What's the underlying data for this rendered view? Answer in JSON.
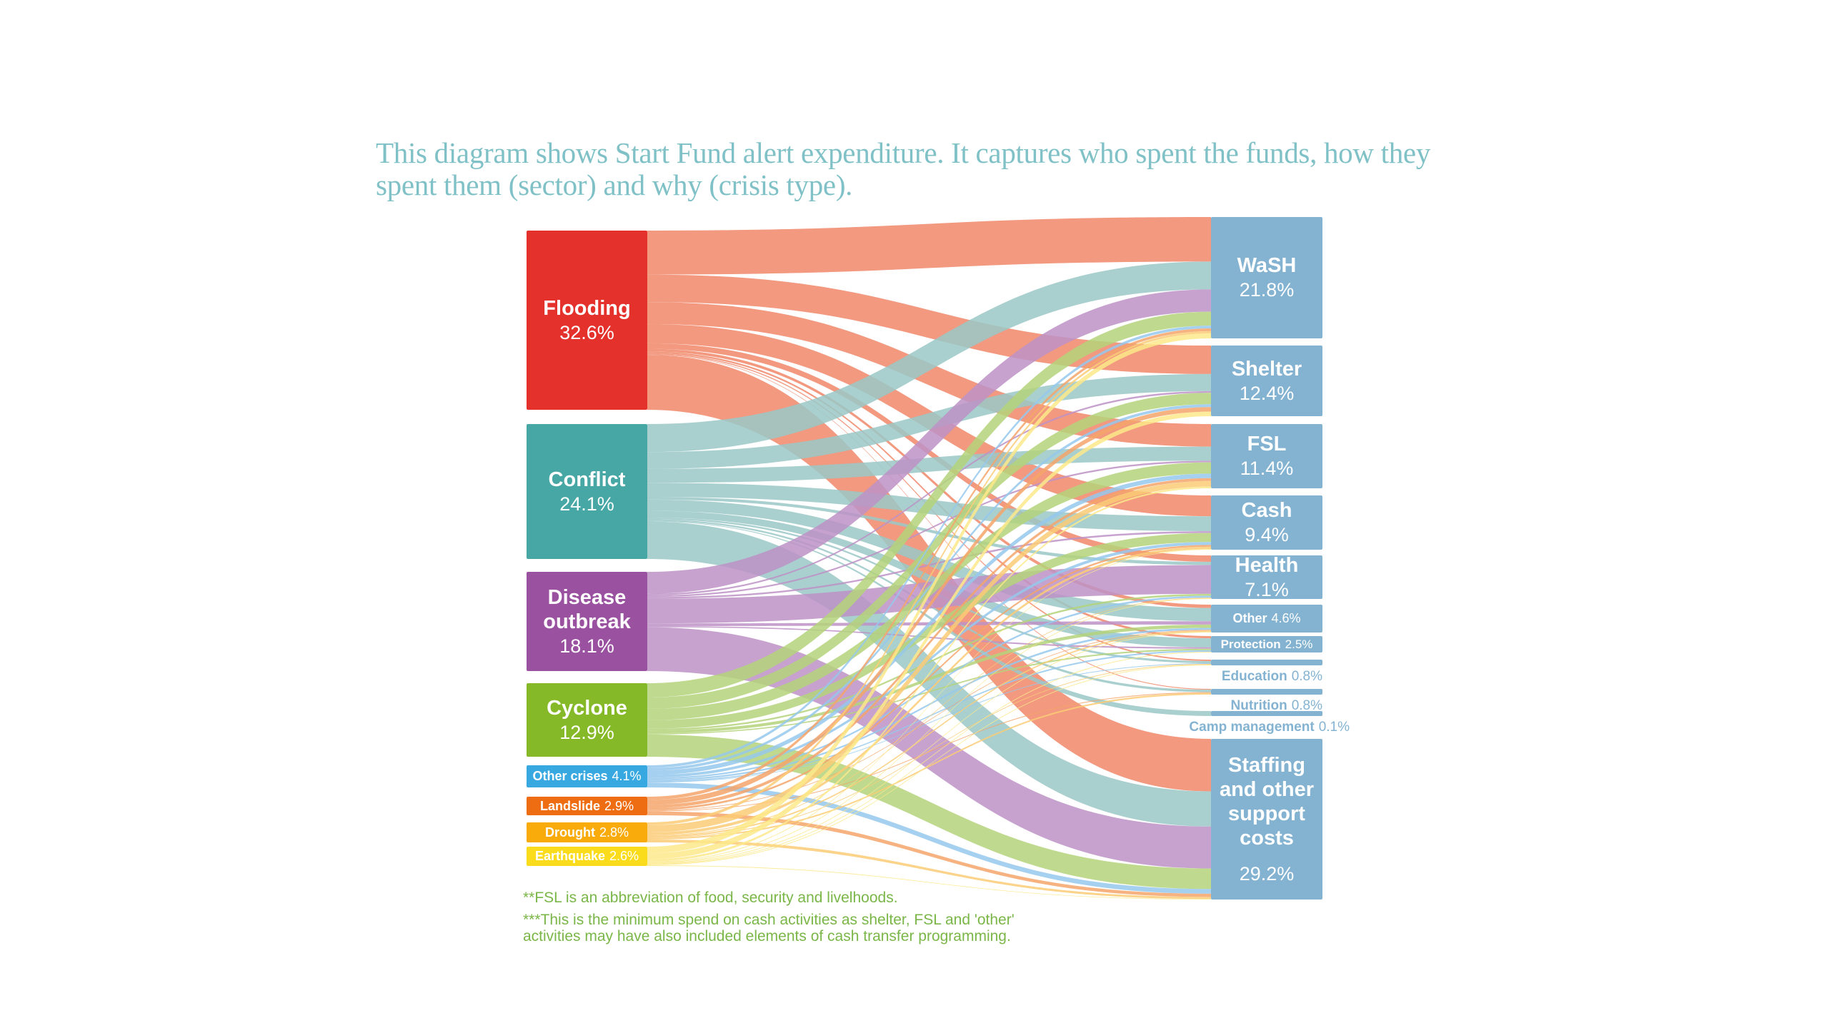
{
  "title": "This diagram shows Start Fund alert expenditure. It captures who spent the funds, how they spent them (sector) and why (crisis type).",
  "chart_data": {
    "type": "sankey",
    "sources": [
      {
        "name": "Flooding",
        "pct": "32.6%",
        "value": 32.6,
        "color": "#e4312b",
        "link_color": "#f0876a"
      },
      {
        "name": "Conflict",
        "pct": "24.1%",
        "value": 24.1,
        "color": "#46a7a5",
        "link_color": "#9ac8c7"
      },
      {
        "name": "Disease outbreak",
        "pct": "18.1%",
        "value": 18.1,
        "color": "#9a52a0",
        "link_color": "#bd92c6"
      },
      {
        "name": "Cyclone",
        "pct": "12.9%",
        "value": 12.9,
        "color": "#86b927",
        "link_color": "#b4d47a"
      },
      {
        "name": "Other crises",
        "pct": "4.1%",
        "value": 4.1,
        "color": "#38a8e0",
        "link_color": "#95c8ec"
      },
      {
        "name": "Landslide",
        "pct": "2.9%",
        "value": 2.9,
        "color": "#ee6c12",
        "link_color": "#f4a46a"
      },
      {
        "name": "Drought",
        "pct": "2.8%",
        "value": 2.8,
        "color": "#f9ab0b",
        "link_color": "#fccb75"
      },
      {
        "name": "Earthquake",
        "pct": "2.6%",
        "value": 2.6,
        "color": "#fbdc1d",
        "link_color": "#fde98a"
      }
    ],
    "targets": [
      {
        "name": "WaSH",
        "pct": "21.8%",
        "value": 21.8
      },
      {
        "name": "Shelter",
        "pct": "12.4%",
        "value": 12.4
      },
      {
        "name": "FSL",
        "pct": "11.4%",
        "value": 11.4
      },
      {
        "name": "Cash",
        "pct": "9.4%",
        "value": 9.4
      },
      {
        "name": "Health",
        "pct": "7.1%",
        "value": 7.1
      },
      {
        "name": "Other",
        "pct": "4.6%",
        "value": 4.6
      },
      {
        "name": "Protection",
        "pct": "2.5%",
        "value": 2.5
      },
      {
        "name": "Education",
        "pct": "0.8%",
        "value": 0.8
      },
      {
        "name": "Nutrition",
        "pct": "0.8%",
        "value": 0.8
      },
      {
        "name": "Camp management",
        "pct": "0.1%",
        "value": 0.1
      },
      {
        "name": "Staffing and other support costs",
        "pct": "29.2%",
        "value": 29.2
      }
    ],
    "target_color": "#84b3d2",
    "links_estimated": [
      [
        8,
        5,
        4,
        3.5,
        1,
        0.5,
        0.3,
        0.2,
        0.1,
        0,
        10
      ],
      [
        5,
        3,
        2.5,
        2.5,
        0.5,
        2,
        1.2,
        0.3,
        0.3,
        0.1,
        6.7
      ],
      [
        4,
        0.3,
        0.3,
        0.3,
        4.5,
        0.5,
        0.2,
        0,
        0,
        0,
        8
      ],
      [
        2.5,
        2,
        2,
        1.5,
        0.3,
        0.5,
        0.2,
        0,
        0,
        0,
        3.9
      ],
      [
        0.5,
        0.5,
        0.8,
        0.5,
        0.3,
        0.3,
        0.2,
        0.1,
        0,
        0,
        0.9
      ],
      [
        0.5,
        0.8,
        0.5,
        0.3,
        0,
        0.1,
        0,
        0,
        0.1,
        0,
        0.6
      ],
      [
        0.4,
        0,
        1,
        0.4,
        0.1,
        0.2,
        0,
        0.1,
        0.2,
        0,
        0.4
      ],
      [
        0.9,
        0.8,
        0.3,
        0.1,
        0.1,
        0.1,
        0.1,
        0.1,
        0,
        0,
        0.1
      ]
    ]
  },
  "notes": [
    "**FSL is an abbreviation of food, security and livelhoods.",
    "***This is the minimum spend on cash activities as shelter, FSL and 'other'",
    "activities may have also included elements of cash transfer programming."
  ]
}
